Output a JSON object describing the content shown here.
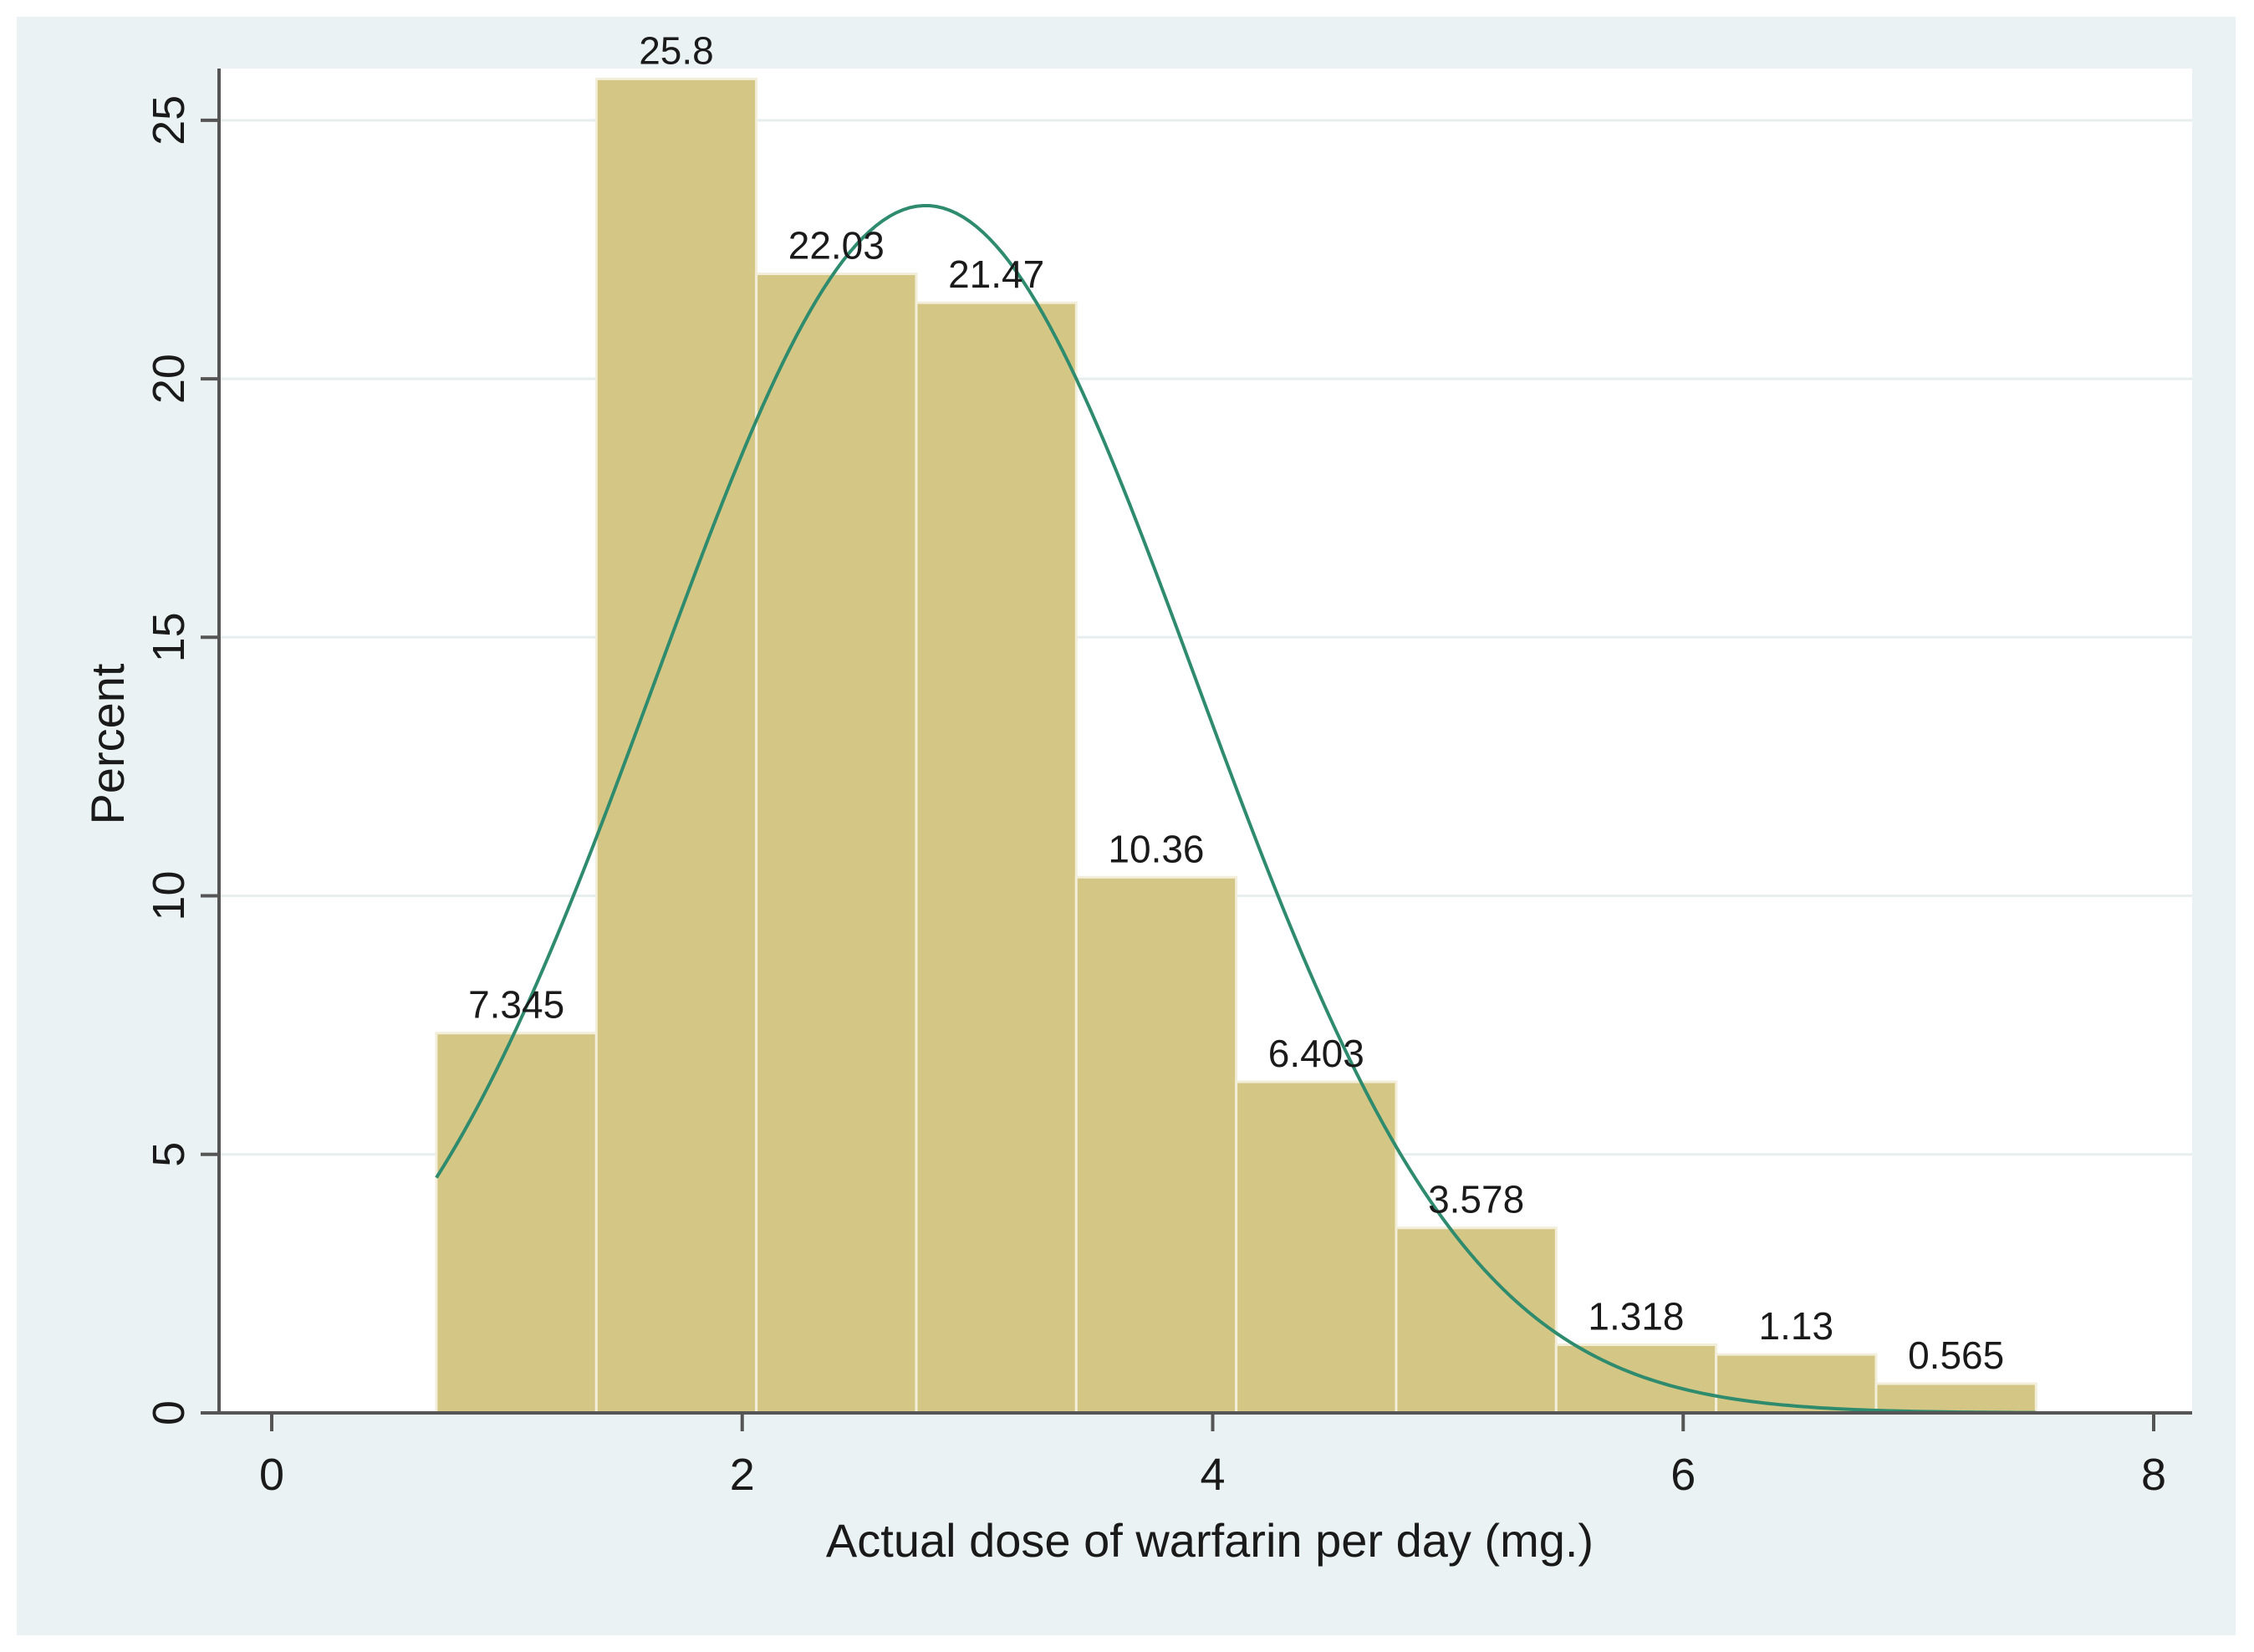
{
  "chart_data": {
    "type": "bar",
    "subtype": "histogram-with-normal-curve",
    "title": "",
    "xlabel": "Actual dose of warfarin per day (mg.)",
    "ylabel": "Percent",
    "xlim": [
      0,
      8
    ],
    "ylim": [
      0,
      26
    ],
    "xticks": [
      0,
      2,
      4,
      6,
      8
    ],
    "xtick_labels": [
      "0",
      "2",
      "4",
      "6",
      "8"
    ],
    "yticks": [
      0,
      5,
      10,
      15,
      20,
      25
    ],
    "ytick_labels": [
      "0",
      "5",
      "10",
      "15",
      "20",
      "25"
    ],
    "grid": true,
    "bins": [
      {
        "x0": 0.7,
        "x1": 1.38,
        "value": 7.345,
        "label": "7.345"
      },
      {
        "x0": 1.38,
        "x1": 2.06,
        "value": 25.8,
        "label": "25.8"
      },
      {
        "x0": 2.06,
        "x1": 2.74,
        "value": 22.03,
        "label": "22.03"
      },
      {
        "x0": 2.74,
        "x1": 3.42,
        "value": 21.47,
        "label": "21.47"
      },
      {
        "x0": 3.42,
        "x1": 4.1,
        "value": 10.36,
        "label": "10.36"
      },
      {
        "x0": 4.1,
        "x1": 4.78,
        "value": 6.403,
        "label": "6.403"
      },
      {
        "x0": 4.78,
        "x1": 5.46,
        "value": 3.578,
        "label": "3.578"
      },
      {
        "x0": 5.46,
        "x1": 6.14,
        "value": 1.318,
        "label": "1.318"
      },
      {
        "x0": 6.14,
        "x1": 6.82,
        "value": 1.13,
        "label": "1.13"
      },
      {
        "x0": 6.82,
        "x1": 7.5,
        "value": 0.565,
        "label": "0.565"
      }
    ],
    "normal_curve": {
      "x_range": [
        0.7,
        7.5
      ],
      "mean": 2.78,
      "sd": 1.15,
      "peak": 23.35
    },
    "colors": {
      "bar_fill": "#d4c684",
      "bar_edge": "#f2eeda",
      "curve": "#2e8b6e",
      "plot_bg": "#ffffff",
      "outer_bg": "#eaf2f3",
      "grid": "#e6eeee",
      "axis": "#555555"
    }
  }
}
